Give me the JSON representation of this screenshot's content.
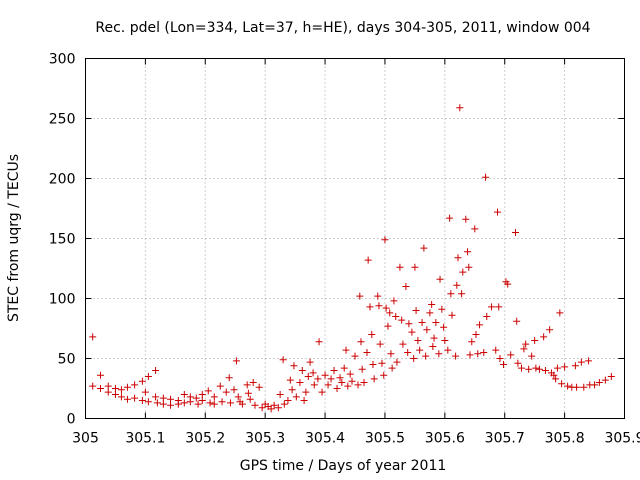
{
  "chart_data": {
    "type": "scatter",
    "title": "Rec. pdel (Lon=334, Lat=37, h=HE), days 304-305, 2011, window 004",
    "xlabel": "GPS time / Days of year 2011",
    "ylabel": "STEC from uqrg / TECUs",
    "xlim": [
      305,
      305.9
    ],
    "ylim": [
      0,
      300
    ],
    "xticks": [
      305,
      305.1,
      305.2,
      305.3,
      305.4,
      305.5,
      305.6,
      305.7,
      305.8,
      305.9
    ],
    "xtick_labels": [
      "305",
      "305.1",
      "305.2",
      "305.3",
      "305.4",
      "305.5",
      "305.6",
      "305.7",
      "305.8",
      "305.9"
    ],
    "yticks": [
      0,
      50,
      100,
      150,
      200,
      250,
      300
    ],
    "ytick_labels": [
      "0",
      "50",
      "100",
      "150",
      "200",
      "250",
      "300"
    ],
    "grid": true,
    "marker": "+",
    "color": "#cc0000",
    "series": [
      {
        "name": "STEC",
        "points": [
          [
            305.012,
            68
          ],
          [
            305.012,
            27
          ],
          [
            305.025,
            36
          ],
          [
            305.025,
            25
          ],
          [
            305.038,
            27
          ],
          [
            305.038,
            22
          ],
          [
            305.05,
            25
          ],
          [
            305.05,
            20
          ],
          [
            305.06,
            24
          ],
          [
            305.06,
            18
          ],
          [
            305.07,
            26
          ],
          [
            305.07,
            16
          ],
          [
            305.082,
            28
          ],
          [
            305.082,
            17
          ],
          [
            305.095,
            31
          ],
          [
            305.095,
            15
          ],
          [
            305.1,
            22
          ],
          [
            305.105,
            35
          ],
          [
            305.105,
            14
          ],
          [
            305.117,
            40
          ],
          [
            305.117,
            18
          ],
          [
            305.12,
            13
          ],
          [
            305.13,
            17
          ],
          [
            305.13,
            12
          ],
          [
            305.142,
            16
          ],
          [
            305.142,
            11
          ],
          [
            305.155,
            15
          ],
          [
            305.155,
            12
          ],
          [
            305.165,
            20
          ],
          [
            305.165,
            13
          ],
          [
            305.175,
            18
          ],
          [
            305.175,
            14
          ],
          [
            305.185,
            17
          ],
          [
            305.188,
            12
          ],
          [
            305.195,
            20
          ],
          [
            305.195,
            15
          ],
          [
            305.205,
            23
          ],
          [
            305.208,
            13
          ],
          [
            305.215,
            18
          ],
          [
            305.215,
            12
          ],
          [
            305.225,
            27
          ],
          [
            305.228,
            14
          ],
          [
            305.235,
            22
          ],
          [
            305.24,
            34
          ],
          [
            305.242,
            13
          ],
          [
            305.248,
            24
          ],
          [
            305.252,
            48
          ],
          [
            305.255,
            18
          ],
          [
            305.258,
            14
          ],
          [
            305.262,
            12
          ],
          [
            305.27,
            28
          ],
          [
            305.272,
            21
          ],
          [
            305.275,
            16
          ],
          [
            305.28,
            30
          ],
          [
            305.283,
            11
          ],
          [
            305.29,
            26
          ],
          [
            305.295,
            9
          ],
          [
            305.3,
            12
          ],
          [
            305.305,
            10
          ],
          [
            305.31,
            8
          ],
          [
            305.315,
            11
          ],
          [
            305.322,
            9
          ],
          [
            305.325,
            20
          ],
          [
            305.33,
            49
          ],
          [
            305.332,
            12
          ],
          [
            305.338,
            15
          ],
          [
            305.342,
            32
          ],
          [
            305.345,
            24
          ],
          [
            305.348,
            44
          ],
          [
            305.352,
            18
          ],
          [
            305.358,
            30
          ],
          [
            305.362,
            40
          ],
          [
            305.365,
            15
          ],
          [
            305.368,
            22
          ],
          [
            305.372,
            35
          ],
          [
            305.375,
            47
          ],
          [
            305.38,
            38
          ],
          [
            305.382,
            28
          ],
          [
            305.388,
            33
          ],
          [
            305.39,
            64
          ],
          [
            305.395,
            22
          ],
          [
            305.4,
            36
          ],
          [
            305.405,
            28
          ],
          [
            305.41,
            33
          ],
          [
            305.415,
            40
          ],
          [
            305.42,
            25
          ],
          [
            305.425,
            34
          ],
          [
            305.428,
            30
          ],
          [
            305.432,
            42
          ],
          [
            305.435,
            57
          ],
          [
            305.438,
            27
          ],
          [
            305.442,
            37
          ],
          [
            305.445,
            31
          ],
          [
            305.45,
            52
          ],
          [
            305.455,
            28
          ],
          [
            305.458,
            102
          ],
          [
            305.46,
            64
          ],
          [
            305.462,
            41
          ],
          [
            305.465,
            30
          ],
          [
            305.47,
            55
          ],
          [
            305.472,
            132
          ],
          [
            305.475,
            93
          ],
          [
            305.478,
            70
          ],
          [
            305.48,
            45
          ],
          [
            305.482,
            33
          ],
          [
            305.488,
            102
          ],
          [
            305.49,
            94
          ],
          [
            305.492,
            62
          ],
          [
            305.495,
            46
          ],
          [
            305.498,
            36
          ],
          [
            305.5,
            149
          ],
          [
            305.502,
            92
          ],
          [
            305.505,
            77
          ],
          [
            305.508,
            88
          ],
          [
            305.51,
            54
          ],
          [
            305.512,
            42
          ],
          [
            305.515,
            98
          ],
          [
            305.518,
            85
          ],
          [
            305.52,
            47
          ],
          [
            305.525,
            126
          ],
          [
            305.528,
            82
          ],
          [
            305.53,
            62
          ],
          [
            305.535,
            110
          ],
          [
            305.538,
            55
          ],
          [
            305.54,
            79
          ],
          [
            305.545,
            72
          ],
          [
            305.548,
            50
          ],
          [
            305.55,
            126
          ],
          [
            305.552,
            90
          ],
          [
            305.555,
            65
          ],
          [
            305.558,
            57
          ],
          [
            305.562,
            80
          ],
          [
            305.565,
            142
          ],
          [
            305.568,
            52
          ],
          [
            305.57,
            74
          ],
          [
            305.575,
            88
          ],
          [
            305.578,
            95
          ],
          [
            305.58,
            60
          ],
          [
            305.582,
            67
          ],
          [
            305.585,
            80
          ],
          [
            305.59,
            54
          ],
          [
            305.592,
            116
          ],
          [
            305.595,
            91
          ],
          [
            305.598,
            76
          ],
          [
            305.6,
            65
          ],
          [
            305.605,
            57
          ],
          [
            305.608,
            167
          ],
          [
            305.61,
            104
          ],
          [
            305.612,
            86
          ],
          [
            305.618,
            52
          ],
          [
            305.62,
            111
          ],
          [
            305.622,
            134
          ],
          [
            305.625,
            259
          ],
          [
            305.628,
            104
          ],
          [
            305.63,
            122
          ],
          [
            305.635,
            166
          ],
          [
            305.638,
            139
          ],
          [
            305.64,
            126
          ],
          [
            305.642,
            53
          ],
          [
            305.645,
            64
          ],
          [
            305.65,
            158
          ],
          [
            305.652,
            70
          ],
          [
            305.655,
            54
          ],
          [
            305.658,
            78
          ],
          [
            305.665,
            55
          ],
          [
            305.668,
            201
          ],
          [
            305.67,
            85
          ],
          [
            305.678,
            93
          ],
          [
            305.685,
            57
          ],
          [
            305.688,
            172
          ],
          [
            305.69,
            93
          ],
          [
            305.692,
            50
          ],
          [
            305.698,
            45
          ],
          [
            305.702,
            114
          ],
          [
            305.705,
            112
          ],
          [
            305.71,
            53
          ],
          [
            305.718,
            155
          ],
          [
            305.72,
            81
          ],
          [
            305.722,
            46
          ],
          [
            305.728,
            42
          ],
          [
            305.732,
            58
          ],
          [
            305.735,
            62
          ],
          [
            305.74,
            41
          ],
          [
            305.745,
            52
          ],
          [
            305.75,
            65
          ],
          [
            305.752,
            42
          ],
          [
            305.758,
            41
          ],
          [
            305.765,
            68
          ],
          [
            305.768,
            40
          ],
          [
            305.775,
            74
          ],
          [
            305.778,
            38
          ],
          [
            305.782,
            36
          ],
          [
            305.785,
            33
          ],
          [
            305.788,
            42
          ],
          [
            305.792,
            88
          ],
          [
            305.795,
            29
          ],
          [
            305.8,
            43
          ],
          [
            305.805,
            27
          ],
          [
            305.812,
            26
          ],
          [
            305.818,
            44
          ],
          [
            305.82,
            26
          ],
          [
            305.828,
            47
          ],
          [
            305.832,
            26
          ],
          [
            305.84,
            48
          ],
          [
            305.842,
            28
          ],
          [
            305.85,
            28
          ],
          [
            305.858,
            30
          ],
          [
            305.868,
            32
          ],
          [
            305.878,
            35
          ]
        ]
      }
    ]
  }
}
